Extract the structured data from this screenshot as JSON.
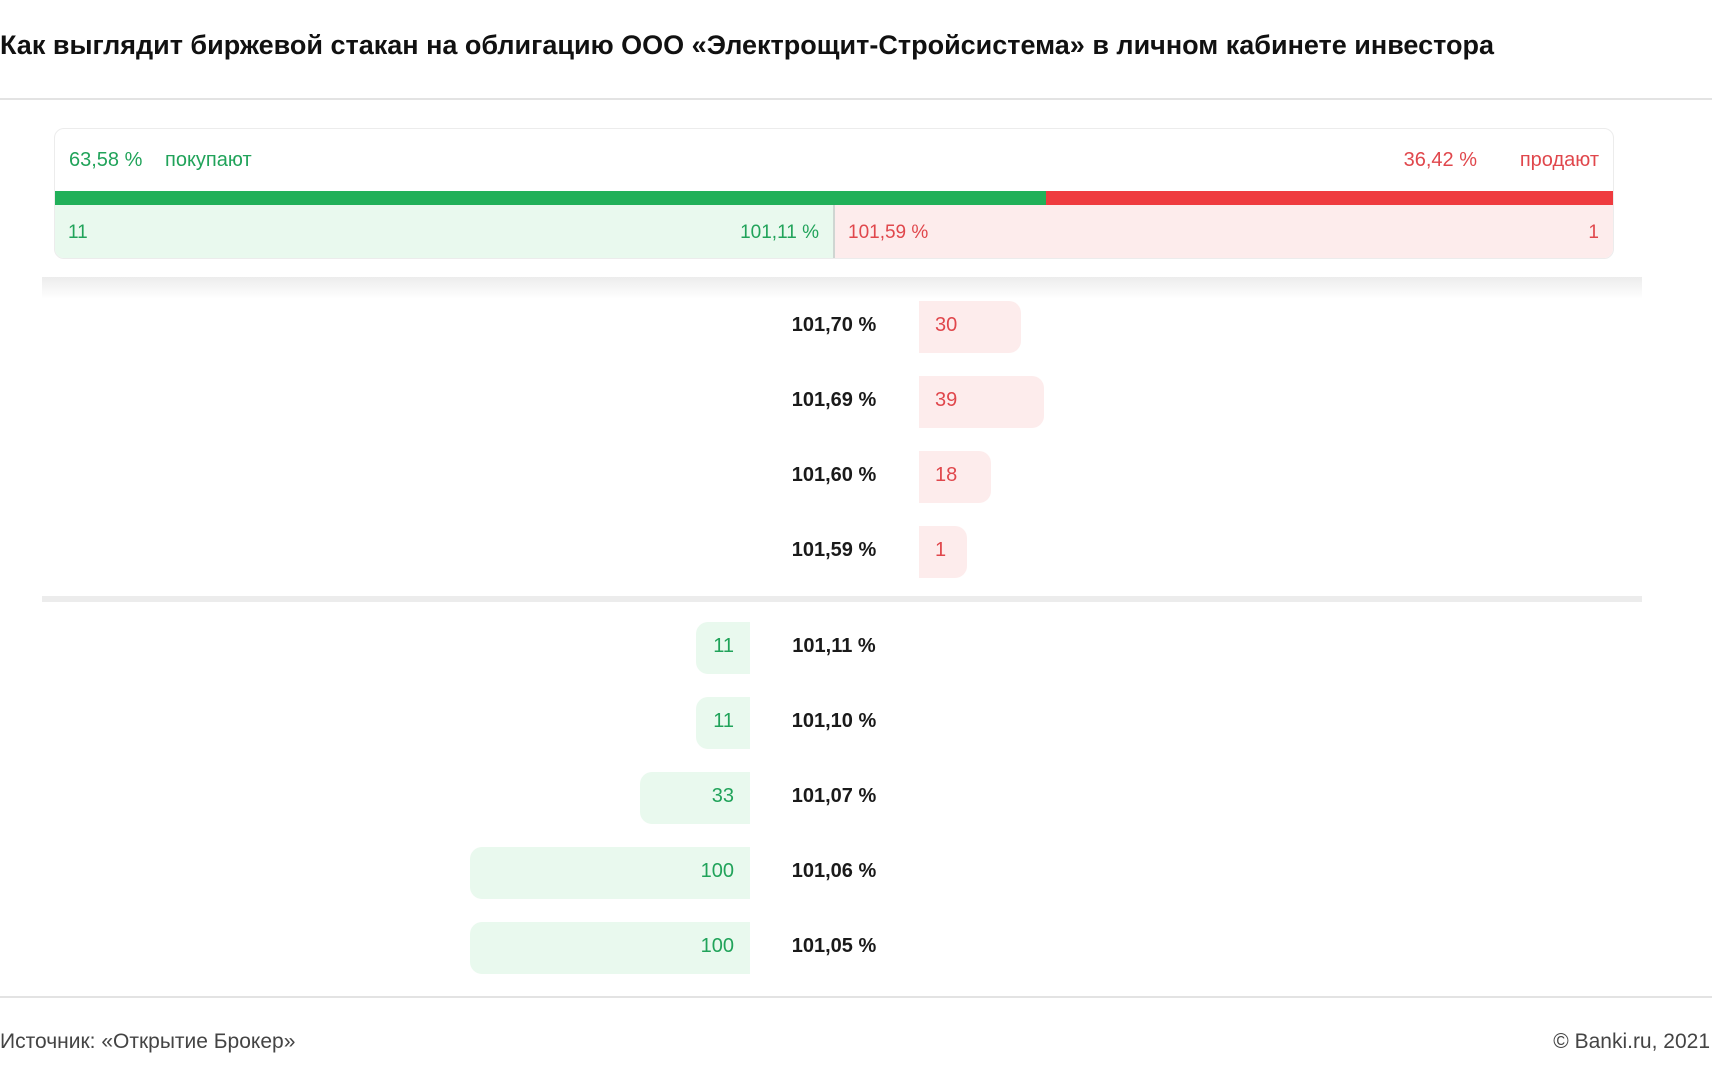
{
  "title": "Как выглядит биржевой стакан на облигацию ООО «Электрощит-Стройсистема» в личном кабинете инвестора",
  "colors": {
    "buy": "#21b059",
    "sell": "#ef3b3f",
    "buy_bg": "#e9f9ee",
    "sell_bg": "#fdecec"
  },
  "summary": {
    "buy_percent": "63,58 %",
    "buy_label": "покупают",
    "sell_percent": "36,42 %",
    "sell_label": "продают",
    "buy_fraction": 0.6358
  },
  "best": {
    "bid_qty": "11",
    "bid_price": "101,11 %",
    "ask_price": "101,59 %",
    "ask_qty": "1"
  },
  "asks": [
    {
      "price": "101,70 %",
      "qty": "30",
      "level": 30
    },
    {
      "price": "101,69 %",
      "qty": "39",
      "level": 39
    },
    {
      "price": "101,60 %",
      "qty": "18",
      "level": 18
    },
    {
      "price": "101,59 %",
      "qty": "1",
      "level": 1
    }
  ],
  "bids": [
    {
      "price": "101,11 %",
      "qty": "11",
      "level": 11
    },
    {
      "price": "101,10 %",
      "qty": "11",
      "level": 11
    },
    {
      "price": "101,07 %",
      "qty": "33",
      "level": 33
    },
    {
      "price": "101,06 %",
      "qty": "100",
      "level": 100
    },
    {
      "price": "101,05 %",
      "qty": "100",
      "level": 100
    }
  ],
  "footer": {
    "source": "Источник: «Открытие Брокер»",
    "copyright": "© Banki.ru, 2021"
  }
}
